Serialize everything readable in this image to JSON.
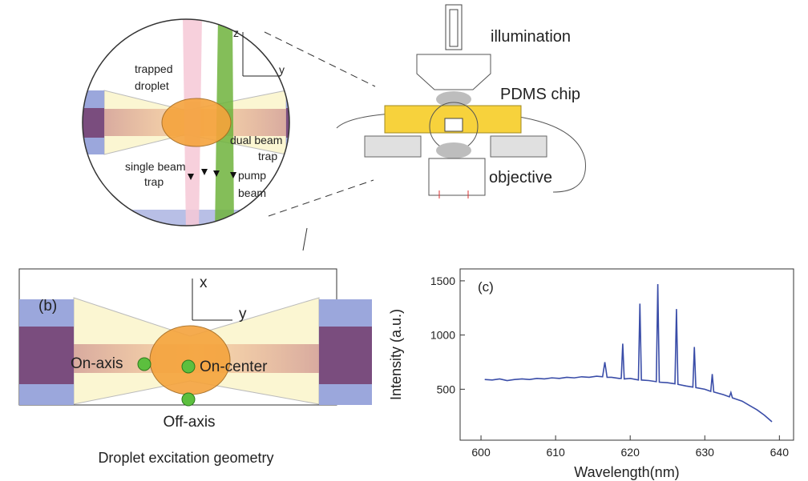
{
  "panel_a": {
    "axis_z": "z",
    "axis_y": "y",
    "trapped_droplet": [
      "trapped",
      "droplet"
    ],
    "dual_beam_trap": [
      "dual beam",
      "trap"
    ],
    "single_beam_trap": [
      "single beam",
      "trap"
    ],
    "pump_beam": [
      "pump",
      "beam"
    ],
    "illumination": "illumination",
    "pdms_chip": "PDMS chip",
    "objective": "objective"
  },
  "panel_b": {
    "label": "(b)",
    "axis_x": "x",
    "axis_y": "y",
    "on_axis": "On-axis",
    "on_center": "On-center",
    "off_axis": "Off-axis",
    "caption": "Droplet excitation geometry"
  },
  "chart_data": {
    "type": "line",
    "panel_label": "(c)",
    "x_label": "Wavelength(nm)",
    "y_label": "Intensity (a.u.)",
    "color": "#3a4da8",
    "x": [
      600.5,
      601.5,
      602.5,
      603.5,
      604.5,
      605.5,
      606.5,
      607.5,
      608.5,
      609.5,
      610.5,
      611.5,
      612.5,
      613.5,
      614.5,
      615.5,
      616.3,
      616.6,
      616.9,
      617.5,
      618.5,
      618.8,
      619.0,
      619.2,
      620.0,
      621.1,
      621.3,
      621.5,
      622.5,
      623.5,
      623.7,
      623.9,
      625.0,
      626.0,
      626.2,
      626.4,
      627.5,
      628.4,
      628.6,
      628.8,
      630.0,
      630.8,
      631.0,
      631.2,
      632.5,
      633.3,
      633.5,
      633.7,
      635.0,
      636.0,
      637.0,
      638.0,
      639.0
    ],
    "values": [
      590,
      585,
      595,
      580,
      590,
      595,
      590,
      600,
      595,
      605,
      600,
      610,
      605,
      615,
      610,
      620,
      615,
      750,
      610,
      610,
      600,
      600,
      920,
      595,
      600,
      585,
      1290,
      585,
      580,
      570,
      1470,
      565,
      560,
      550,
      1240,
      545,
      530,
      520,
      890,
      515,
      500,
      480,
      640,
      475,
      450,
      430,
      470,
      420,
      390,
      350,
      310,
      260,
      200
    ],
    "xlim": [
      597.2,
      641.9
    ],
    "ylim": [
      30,
      1610
    ],
    "xticks": [
      600,
      610,
      620,
      630,
      640
    ],
    "yticks": [
      500,
      1000,
      1500
    ]
  }
}
